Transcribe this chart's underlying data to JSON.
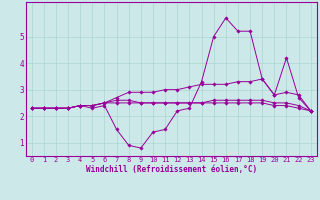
{
  "title": "",
  "xlabel": "Windchill (Refroidissement éolien,°C)",
  "background_color": "#cce8e8",
  "line_color": "#990099",
  "grid_color": "#aad4d4",
  "x_ticks": [
    0,
    1,
    2,
    3,
    4,
    5,
    6,
    7,
    8,
    9,
    10,
    11,
    12,
    13,
    14,
    15,
    16,
    17,
    18,
    19,
    20,
    21,
    22,
    23
  ],
  "y_ticks": [
    1,
    2,
    3,
    4,
    5
  ],
  "ylim": [
    0.5,
    6.3
  ],
  "xlim": [
    -0.5,
    23.5
  ],
  "series": [
    [
      2.3,
      2.3,
      2.3,
      2.3,
      2.4,
      2.3,
      2.4,
      1.5,
      0.9,
      0.8,
      1.4,
      1.5,
      2.2,
      2.3,
      3.3,
      5.0,
      5.7,
      5.2,
      5.2,
      3.4,
      2.8,
      4.2,
      2.7,
      2.2
    ],
    [
      2.3,
      2.3,
      2.3,
      2.3,
      2.4,
      2.4,
      2.5,
      2.7,
      2.9,
      2.9,
      2.9,
      3.0,
      3.0,
      3.1,
      3.2,
      3.2,
      3.2,
      3.3,
      3.3,
      3.4,
      2.8,
      2.9,
      2.8,
      2.2
    ],
    [
      2.3,
      2.3,
      2.3,
      2.3,
      2.4,
      2.4,
      2.5,
      2.6,
      2.6,
      2.5,
      2.5,
      2.5,
      2.5,
      2.5,
      2.5,
      2.6,
      2.6,
      2.6,
      2.6,
      2.6,
      2.5,
      2.5,
      2.4,
      2.2
    ],
    [
      2.3,
      2.3,
      2.3,
      2.3,
      2.4,
      2.4,
      2.5,
      2.5,
      2.5,
      2.5,
      2.5,
      2.5,
      2.5,
      2.5,
      2.5,
      2.5,
      2.5,
      2.5,
      2.5,
      2.5,
      2.4,
      2.4,
      2.3,
      2.2
    ]
  ],
  "tick_fontsize": 5.0,
  "xlabel_fontsize": 5.5
}
